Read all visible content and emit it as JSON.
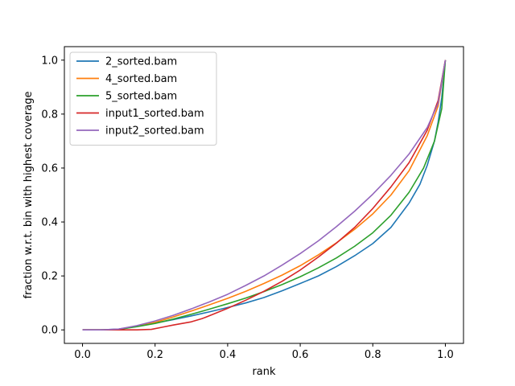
{
  "chart_data": {
    "type": "line",
    "title": "",
    "xlabel": "rank",
    "ylabel": "fraction w.r.t. bin with highest coverage",
    "xlim": [
      -0.05,
      1.05
    ],
    "ylim": [
      -0.05,
      1.05
    ],
    "xticks": [
      "0.0",
      "0.2",
      "0.4",
      "0.6",
      "0.8",
      "1.0"
    ],
    "yticks": [
      "0.0",
      "0.2",
      "0.4",
      "0.6",
      "0.8",
      "1.0"
    ],
    "grid": false,
    "legend": "top-left",
    "series": [
      {
        "name": "2_sorted.bam",
        "color": "#1f77b4",
        "x": [
          0.0,
          0.05,
          0.1,
          0.15,
          0.2,
          0.25,
          0.3,
          0.35,
          0.4,
          0.45,
          0.5,
          0.55,
          0.6,
          0.65,
          0.7,
          0.75,
          0.8,
          0.85,
          0.9,
          0.93,
          0.95,
          0.97,
          0.98,
          0.99,
          1.0
        ],
        "y": [
          0.0,
          0.0,
          0.003,
          0.013,
          0.025,
          0.038,
          0.052,
          0.067,
          0.083,
          0.1,
          0.12,
          0.145,
          0.172,
          0.2,
          0.235,
          0.275,
          0.32,
          0.38,
          0.47,
          0.54,
          0.61,
          0.7,
          0.77,
          0.86,
          1.0
        ]
      },
      {
        "name": "4_sorted.bam",
        "color": "#ff7f0e",
        "x": [
          0.0,
          0.05,
          0.1,
          0.15,
          0.2,
          0.25,
          0.3,
          0.35,
          0.4,
          0.45,
          0.5,
          0.55,
          0.6,
          0.65,
          0.7,
          0.75,
          0.8,
          0.85,
          0.9,
          0.95,
          0.98,
          1.0
        ],
        "y": [
          0.0,
          0.0,
          0.002,
          0.013,
          0.028,
          0.048,
          0.07,
          0.093,
          0.117,
          0.143,
          0.172,
          0.203,
          0.238,
          0.278,
          0.323,
          0.373,
          0.43,
          0.5,
          0.59,
          0.72,
          0.83,
          1.0
        ]
      },
      {
        "name": "5_sorted.bam",
        "color": "#2ca02c",
        "x": [
          0.0,
          0.05,
          0.1,
          0.15,
          0.2,
          0.25,
          0.3,
          0.35,
          0.4,
          0.45,
          0.5,
          0.55,
          0.6,
          0.65,
          0.7,
          0.75,
          0.8,
          0.85,
          0.9,
          0.94,
          0.97,
          0.99,
          1.0
        ],
        "y": [
          0.0,
          0.0,
          0.002,
          0.012,
          0.024,
          0.04,
          0.058,
          0.077,
          0.097,
          0.118,
          0.142,
          0.168,
          0.197,
          0.23,
          0.267,
          0.31,
          0.36,
          0.425,
          0.51,
          0.6,
          0.7,
          0.82,
          1.0
        ]
      },
      {
        "name": "input1_sorted.bam",
        "color": "#d62728",
        "x": [
          0.0,
          0.1,
          0.15,
          0.19,
          0.22,
          0.25,
          0.3,
          0.33,
          0.36,
          0.4,
          0.45,
          0.5,
          0.55,
          0.6,
          0.65,
          0.7,
          0.75,
          0.8,
          0.85,
          0.9,
          0.95,
          0.98,
          1.0
        ],
        "y": [
          0.0,
          0.0,
          0.0,
          0.002,
          0.01,
          0.018,
          0.03,
          0.042,
          0.058,
          0.08,
          0.11,
          0.143,
          0.18,
          0.222,
          0.27,
          0.322,
          0.38,
          0.45,
          0.53,
          0.62,
          0.74,
          0.85,
          1.0
        ]
      },
      {
        "name": "input2_sorted.bam",
        "color": "#9467bd",
        "x": [
          0.0,
          0.05,
          0.1,
          0.15,
          0.2,
          0.25,
          0.3,
          0.35,
          0.4,
          0.45,
          0.5,
          0.55,
          0.6,
          0.65,
          0.7,
          0.75,
          0.8,
          0.85,
          0.9,
          0.95,
          0.98,
          1.0
        ],
        "y": [
          0.0,
          0.0,
          0.003,
          0.016,
          0.033,
          0.054,
          0.078,
          0.104,
          0.132,
          0.165,
          0.2,
          0.24,
          0.283,
          0.33,
          0.383,
          0.44,
          0.503,
          0.573,
          0.652,
          0.75,
          0.84,
          1.0
        ]
      }
    ]
  }
}
